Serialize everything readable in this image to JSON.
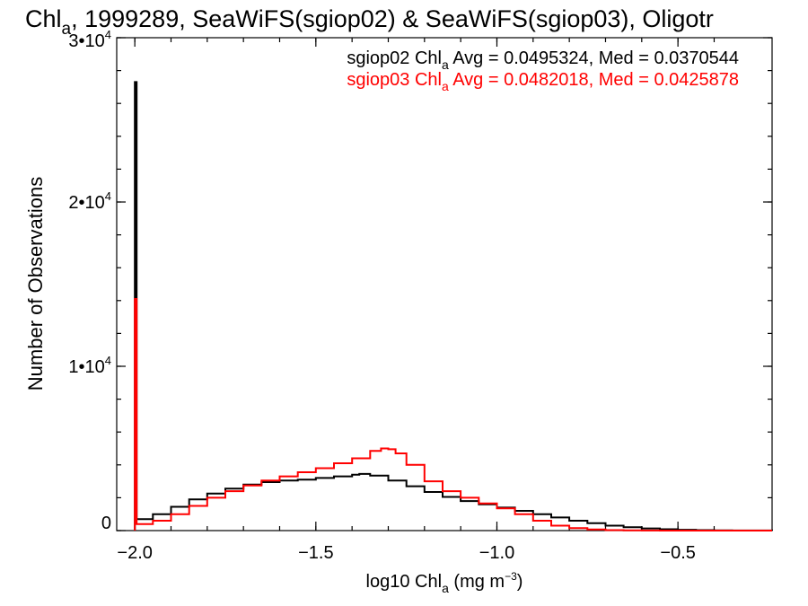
{
  "title": {
    "prefix": "Chl",
    "sub": "a",
    "rest": ", 1999289, SeaWiFS(sgiop02) & SeaWiFS(sgiop03), Oligotr"
  },
  "legend": [
    {
      "label_prefix": "sgiop02 Chl",
      "label_sub": "a",
      "label_rest": " Avg = 0.0495324, Med = 0.0370544",
      "color": "#000000"
    },
    {
      "label_prefix": "sgiop03 Chl",
      "label_sub": "a",
      "label_rest": " Avg = 0.0482018, Med = 0.0425878",
      "color": "#ff0000"
    }
  ],
  "xaxis": {
    "label_prefix": "log10 Chl",
    "label_sub": "a",
    "label_rest": " (mg m",
    "label_sup": "−3",
    "label_end": ")",
    "ticks": [
      {
        "value": -2.0,
        "label": "−2.0"
      },
      {
        "value": -1.5,
        "label": "−1.5"
      },
      {
        "value": -1.0,
        "label": "−1.0"
      },
      {
        "value": -0.5,
        "label": "−0.5"
      }
    ]
  },
  "yaxis": {
    "label": "Number of Observations",
    "ticks": [
      {
        "value": 0,
        "base": "0",
        "exp": ""
      },
      {
        "value": 10000,
        "base": "1•10",
        "exp": "4"
      },
      {
        "value": 20000,
        "base": "2•10",
        "exp": "4"
      },
      {
        "value": 30000,
        "base": "3•10",
        "exp": "4"
      }
    ]
  },
  "chart_data": {
    "type": "line",
    "step": true,
    "xlim": [
      -2.05,
      -0.24
    ],
    "ylim": [
      0,
      30000
    ],
    "grid": false,
    "legend_position": "top-right",
    "series": [
      {
        "name": "sgiop02",
        "color": "#000000",
        "x": [
          -2.0,
          -1.999,
          -1.995,
          -1.95,
          -1.9,
          -1.85,
          -1.8,
          -1.75,
          -1.7,
          -1.65,
          -1.6,
          -1.55,
          -1.5,
          -1.45,
          -1.4,
          -1.38,
          -1.35,
          -1.3,
          -1.25,
          -1.2,
          -1.15,
          -1.1,
          -1.05,
          -1.0,
          -0.95,
          -0.9,
          -0.85,
          -0.8,
          -0.75,
          -0.7,
          -0.65,
          -0.6,
          -0.55,
          -0.5,
          -0.45,
          -0.4,
          -0.35,
          -0.3,
          -0.24
        ],
        "y": [
          27300,
          27300,
          700,
          1000,
          1450,
          1900,
          2250,
          2550,
          2800,
          2950,
          3050,
          3100,
          3200,
          3300,
          3400,
          3450,
          3350,
          3050,
          2700,
          2350,
          2050,
          1800,
          1600,
          1400,
          1200,
          1000,
          800,
          600,
          450,
          300,
          200,
          130,
          80,
          50,
          30,
          15,
          8,
          4,
          0
        ]
      },
      {
        "name": "sgiop03",
        "color": "#ff0000",
        "x": [
          -2.0,
          -1.999,
          -1.995,
          -1.95,
          -1.9,
          -1.85,
          -1.8,
          -1.75,
          -1.7,
          -1.65,
          -1.6,
          -1.55,
          -1.5,
          -1.45,
          -1.4,
          -1.35,
          -1.32,
          -1.3,
          -1.28,
          -1.25,
          -1.2,
          -1.15,
          -1.1,
          -1.05,
          -1.0,
          -0.95,
          -0.9,
          -0.85,
          -0.8,
          -0.75,
          -0.7,
          -0.65,
          -0.6,
          -0.55,
          -0.5,
          -0.24
        ],
        "y": [
          14100,
          14100,
          400,
          600,
          1000,
          1500,
          2000,
          2400,
          2750,
          3050,
          3300,
          3550,
          3800,
          4100,
          4400,
          4850,
          5000,
          4950,
          4700,
          4000,
          3000,
          2400,
          2000,
          1650,
          1350,
          1000,
          600,
          300,
          150,
          70,
          30,
          12,
          5,
          2,
          0,
          0
        ]
      }
    ]
  }
}
